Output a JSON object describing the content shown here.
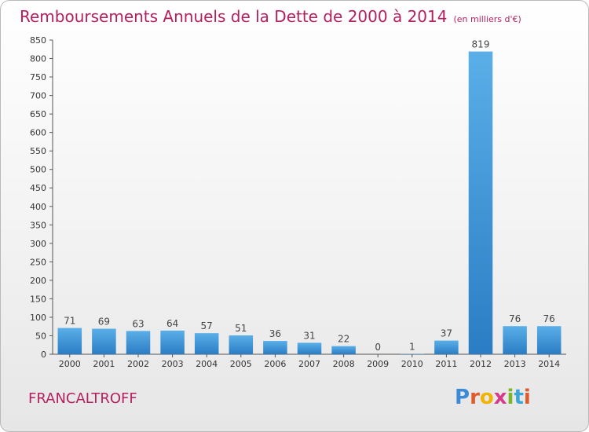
{
  "title": "Remboursements Annuels de la Dette de 2000 à 2014",
  "unit": "(en milliers d'€)",
  "commune": "FRANCALTROFF",
  "brand": "Proxiti",
  "colors": {
    "title": "#b41f5f",
    "bar_light": "#5aafe8",
    "bar_dark": "#2878bf",
    "axis": "#555555",
    "grid": "#d0d0d0"
  },
  "chart_data": {
    "type": "bar",
    "title": "Remboursements Annuels de la Dette de 2000 à 2014",
    "xlabel": "",
    "ylabel": "",
    "categories": [
      "2000",
      "2001",
      "2002",
      "2003",
      "2004",
      "2005",
      "2006",
      "2007",
      "2008",
      "2009",
      "2010",
      "2011",
      "2012",
      "2013",
      "2014"
    ],
    "values": [
      71,
      69,
      63,
      64,
      57,
      51,
      36,
      31,
      22,
      0,
      1,
      37,
      819,
      76,
      76
    ],
    "ylim": [
      0,
      850
    ],
    "yticks": [
      0,
      50,
      100,
      150,
      200,
      250,
      300,
      350,
      400,
      450,
      500,
      550,
      600,
      650,
      700,
      750,
      800,
      850
    ],
    "grid": false,
    "legend": "none"
  }
}
